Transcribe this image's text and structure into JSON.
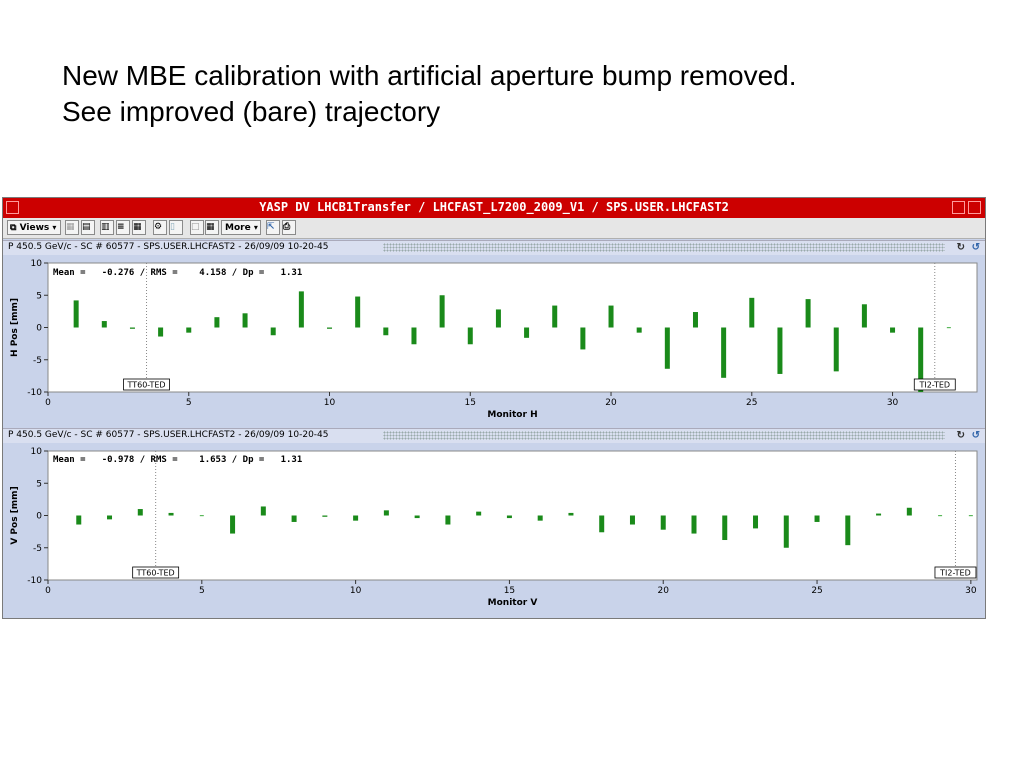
{
  "slide": {
    "title_line1": "New MBE calibration with artificial aperture bump removed.",
    "title_line2": "See improved (bare) trajectory"
  },
  "window": {
    "title": "YASP DV LHCB1Transfer / LHCFAST_L7200_2009_V1 / SPS.USER.LHCFAST2",
    "titlebar_color": "#cc0000"
  },
  "toolbar": {
    "views_label": "Views",
    "more_label": "More"
  },
  "panels": [
    {
      "header": "P 450.5 GeV/c - SC # 60577 - SPS.USER.LHCFAST2 - 26/09/09 10-20-45",
      "stats": "Mean =   -0.276 / RMS =    4.158 / Dp =   1.31"
    },
    {
      "header": "P 450.5 GeV/c - SC # 60577 - SPS.USER.LHCFAST2 - 26/09/09 10-20-45",
      "stats": "Mean =   -0.978 / RMS =    1.653 / Dp =   1.31"
    }
  ],
  "chart_data": [
    {
      "type": "bar",
      "xlabel": "Monitor H",
      "ylabel": "H Pos [mm]",
      "xlim": [
        0,
        33
      ],
      "ylim": [
        -10,
        10
      ],
      "xticks": [
        0,
        5,
        10,
        15,
        20,
        25,
        30
      ],
      "yticks": [
        -10,
        -5,
        0,
        5,
        10
      ],
      "bar_color": "#1a8a1a",
      "x": [
        1,
        2,
        3,
        4,
        5,
        6,
        7,
        8,
        9,
        10,
        11,
        12,
        13,
        14,
        15,
        16,
        17,
        18,
        19,
        20,
        21,
        22,
        23,
        24,
        25,
        26,
        27,
        28,
        29,
        30,
        31,
        32
      ],
      "values": [
        4.2,
        1.0,
        -0.2,
        -1.4,
        -0.8,
        1.6,
        2.2,
        -1.2,
        5.6,
        -0.2,
        4.8,
        -1.2,
        -2.6,
        5.0,
        -2.6,
        2.8,
        -1.6,
        3.4,
        -3.4,
        3.4,
        -0.8,
        -6.4,
        2.4,
        -7.8,
        4.6,
        -7.2,
        4.4,
        -6.8,
        3.6,
        -0.8,
        -10.0,
        0.0
      ],
      "markers": [
        {
          "x": 3.5,
          "label": "TT60-TED"
        },
        {
          "x": 31.5,
          "label": "TI2-TED"
        }
      ]
    },
    {
      "type": "bar",
      "xlabel": "Monitor V",
      "ylabel": "V Pos [mm]",
      "xlim": [
        0,
        30.2
      ],
      "ylim": [
        -10,
        10
      ],
      "xticks": [
        0,
        5,
        10,
        15,
        20,
        25,
        30
      ],
      "yticks": [
        -10,
        -5,
        0,
        5,
        10
      ],
      "bar_color": "#1a8a1a",
      "x": [
        1,
        2,
        3,
        4,
        5,
        6,
        7,
        8,
        9,
        10,
        11,
        12,
        13,
        14,
        15,
        16,
        17,
        18,
        19,
        20,
        21,
        22,
        23,
        24,
        25,
        26,
        27,
        28,
        29,
        30
      ],
      "values": [
        -1.4,
        -0.6,
        1.0,
        0.4,
        0.0,
        -2.8,
        1.4,
        -1.0,
        -0.2,
        -0.8,
        0.8,
        -0.4,
        -1.4,
        0.6,
        -0.4,
        -0.8,
        0.4,
        -2.6,
        -1.4,
        -2.2,
        -2.8,
        -3.8,
        -2.0,
        -5.0,
        -1.0,
        -4.6,
        0.3,
        1.2,
        -0.1,
        0.0
      ],
      "markers": [
        {
          "x": 3.5,
          "label": "TT60-TED"
        },
        {
          "x": 29.5,
          "label": "TI2-TED"
        }
      ]
    }
  ]
}
